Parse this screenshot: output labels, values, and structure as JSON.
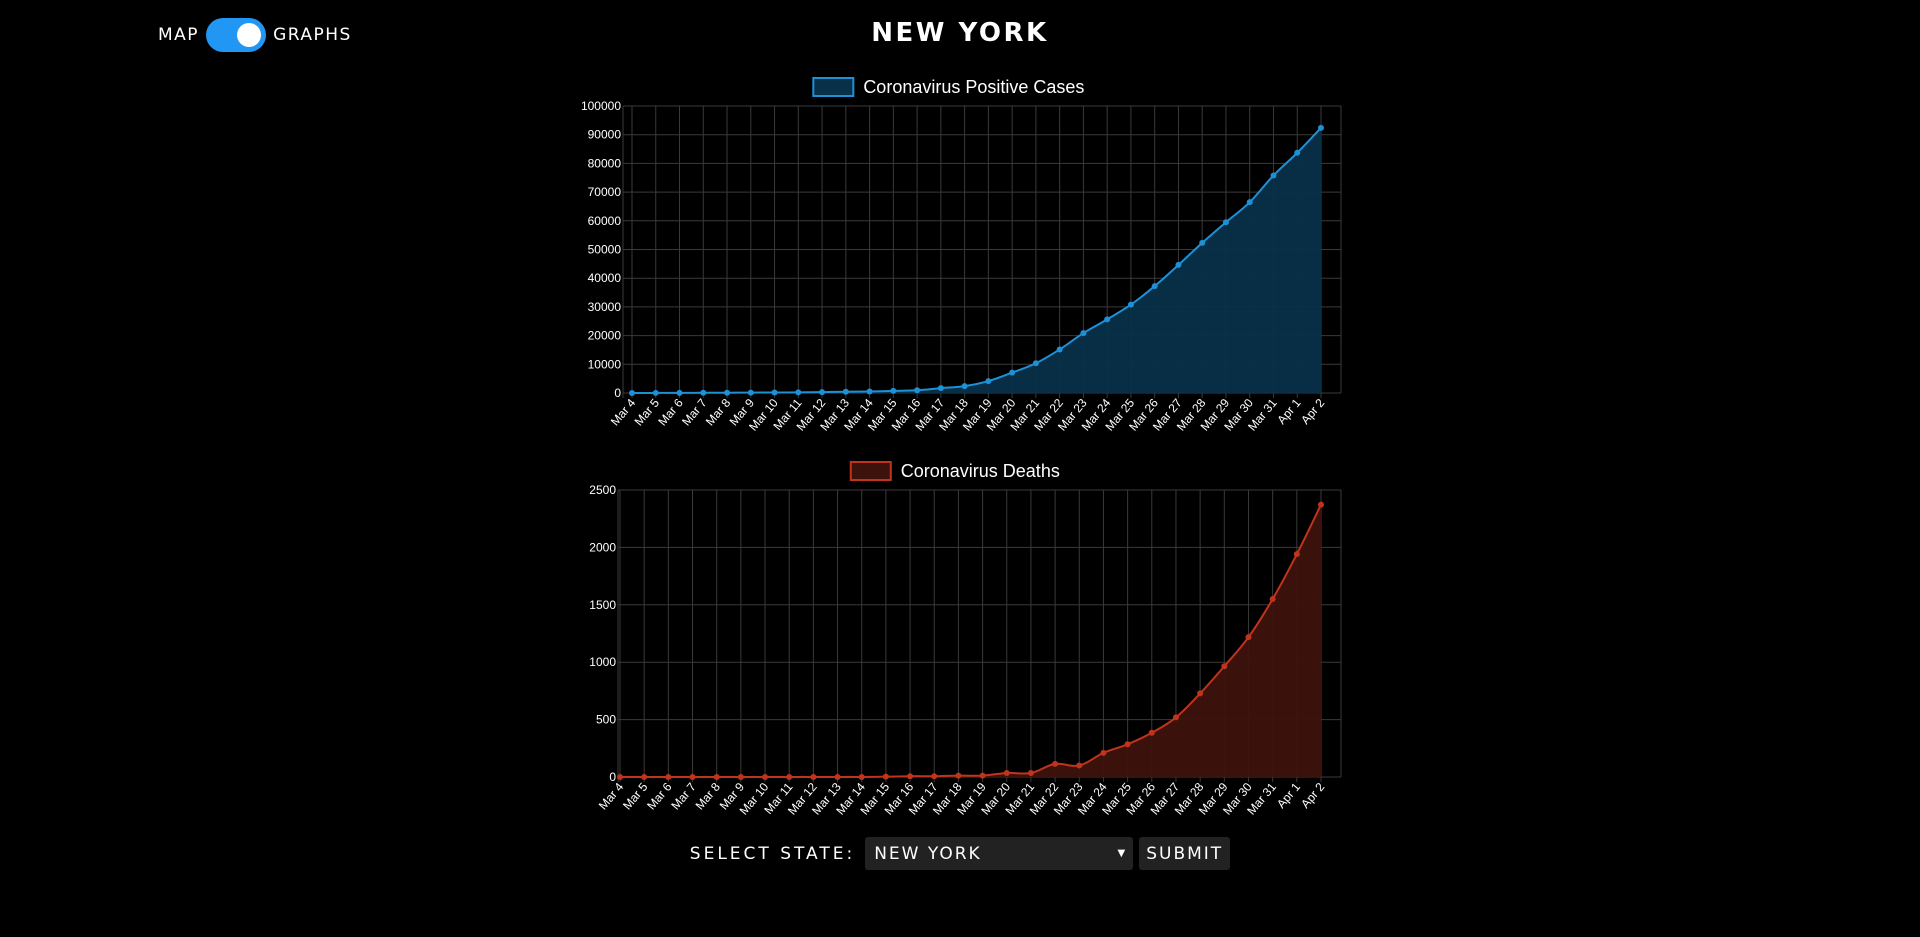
{
  "header": {
    "title": "NEW YORK",
    "toggle_left": "MAP",
    "toggle_right": "GRAPHS",
    "toggle_on": true
  },
  "controls": {
    "select_label": "SELECT STATE:",
    "selected_state": "NEW YORK",
    "submit_label": "SUBMIT"
  },
  "colors": {
    "cases_line": "#1e90d6",
    "cases_fill": "#083049",
    "deaths_line": "#c0341d",
    "deaths_fill": "#3d120c",
    "grid": "#3a3a3a"
  },
  "chart_data": [
    {
      "type": "area",
      "legend": "Coronavirus Positive Cases",
      "categories": [
        "Mar 4",
        "Mar 5",
        "Mar 6",
        "Mar 7",
        "Mar 8",
        "Mar 9",
        "Mar 10",
        "Mar 11",
        "Mar 12",
        "Mar 13",
        "Mar 14",
        "Mar 15",
        "Mar 16",
        "Mar 17",
        "Mar 18",
        "Mar 19",
        "Mar 20",
        "Mar 21",
        "Mar 22",
        "Mar 23",
        "Mar 24",
        "Mar 25",
        "Mar 26",
        "Mar 27",
        "Mar 28",
        "Mar 29",
        "Mar 30",
        "Mar 31",
        "Apr 1",
        "Apr 2"
      ],
      "values": [
        11,
        22,
        33,
        76,
        105,
        142,
        173,
        216,
        325,
        421,
        524,
        729,
        950,
        1700,
        2382,
        4152,
        7102,
        10356,
        15168,
        20875,
        25665,
        30811,
        37258,
        44635,
        52318,
        59513,
        66497,
        75795,
        83712,
        92381
      ],
      "ylim": [
        0,
        100000
      ],
      "yticks": [
        0,
        10000,
        20000,
        30000,
        40000,
        50000,
        60000,
        70000,
        80000,
        90000,
        100000
      ],
      "grid": true,
      "legend_position": "top"
    },
    {
      "type": "area",
      "legend": "Coronavirus Deaths",
      "categories": [
        "Mar 4",
        "Mar 5",
        "Mar 6",
        "Mar 7",
        "Mar 8",
        "Mar 9",
        "Mar 10",
        "Mar 11",
        "Mar 12",
        "Mar 13",
        "Mar 14",
        "Mar 15",
        "Mar 16",
        "Mar 17",
        "Mar 18",
        "Mar 19",
        "Mar 20",
        "Mar 21",
        "Mar 22",
        "Mar 23",
        "Mar 24",
        "Mar 25",
        "Mar 26",
        "Mar 27",
        "Mar 28",
        "Mar 29",
        "Mar 30",
        "Mar 31",
        "Apr 1",
        "Apr 2"
      ],
      "values": [
        0,
        0,
        0,
        0,
        0,
        0,
        0,
        0,
        0,
        0,
        0,
        3,
        7,
        7,
        12,
        12,
        35,
        35,
        114,
        100,
        210,
        285,
        385,
        519,
        728,
        965,
        1218,
        1550,
        1941,
        2373
      ],
      "ylim": [
        0,
        2500
      ],
      "yticks": [
        0,
        500,
        1000,
        1500,
        2000,
        2500
      ],
      "grid": true,
      "legend_position": "top"
    }
  ]
}
